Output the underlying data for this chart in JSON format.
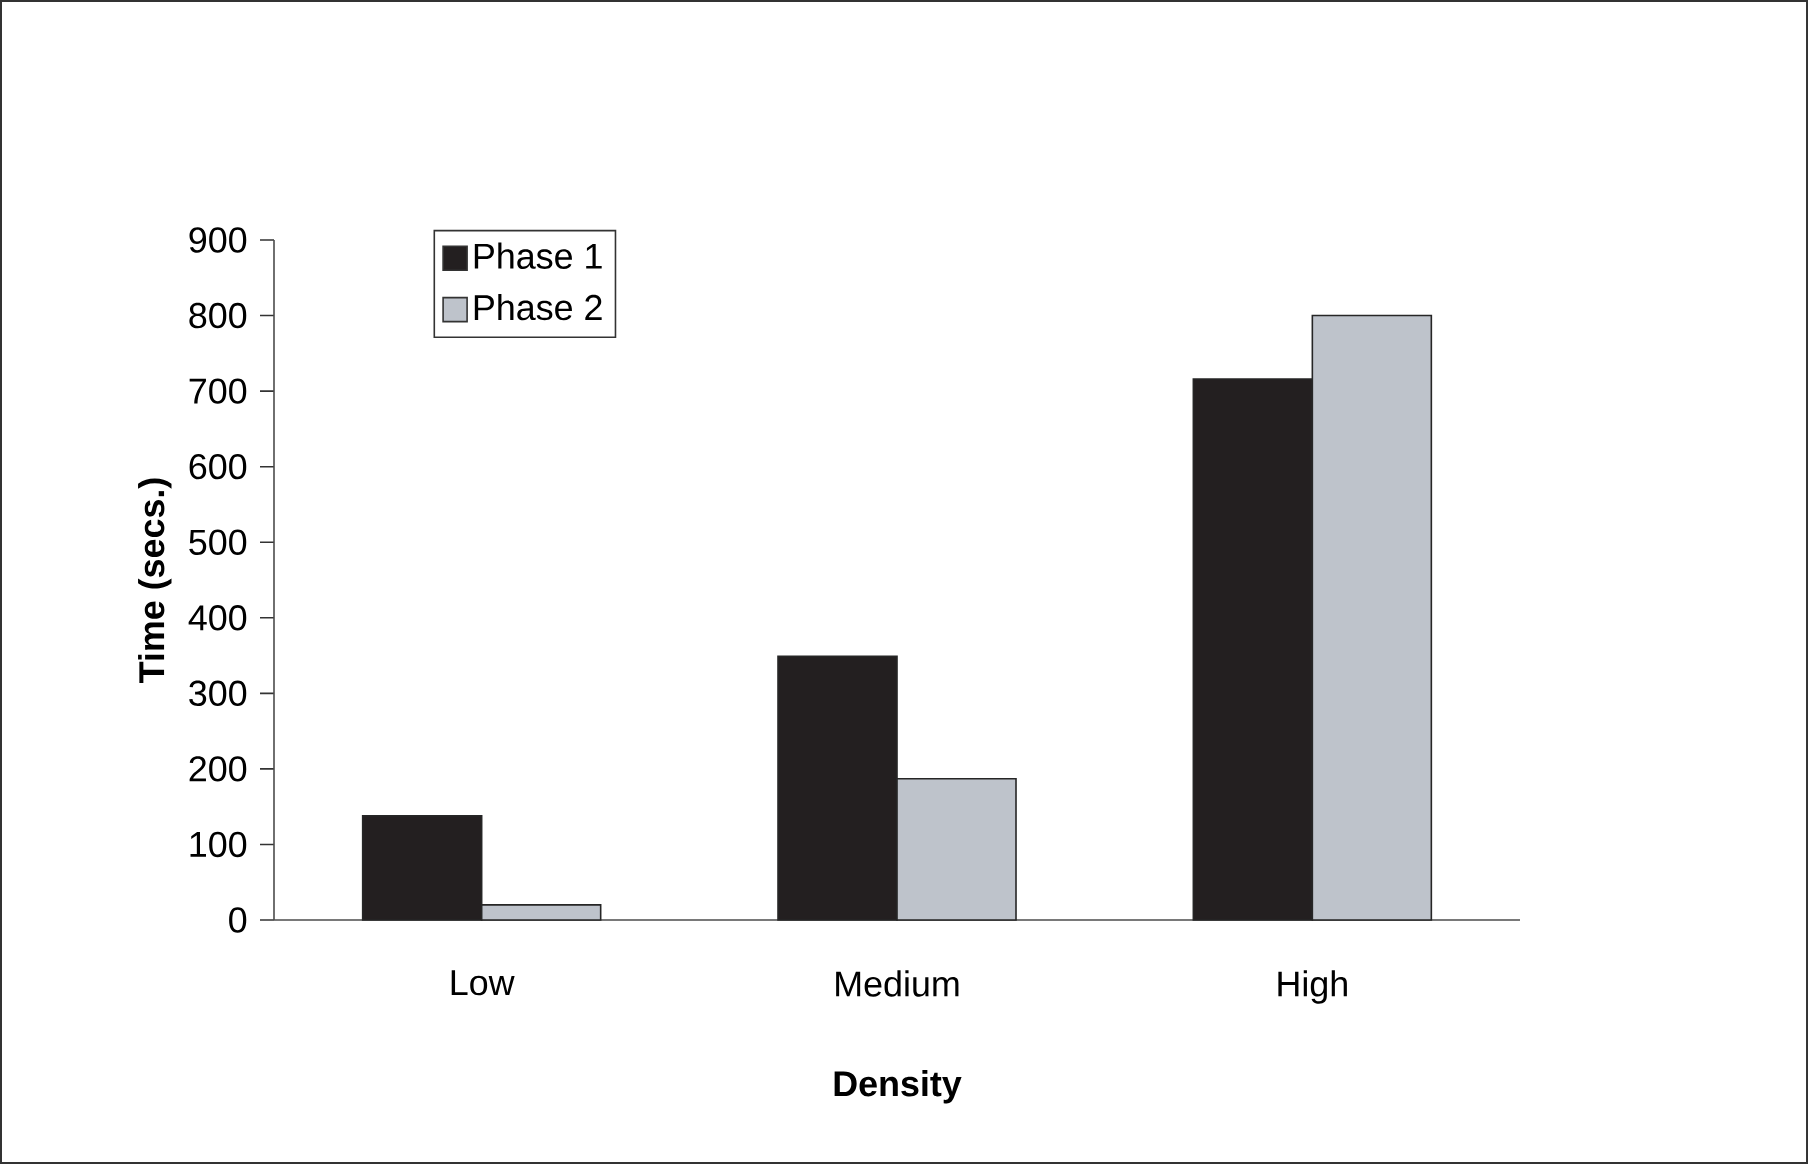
{
  "chart_data": {
    "type": "bar",
    "xlabel": "Density",
    "ylabel": "Time (secs.)",
    "categories": [
      "Low",
      "Medium",
      "High"
    ],
    "series": [
      {
        "name": "Phase 1",
        "color": "#231f20",
        "values": [
          138,
          349,
          716
        ]
      },
      {
        "name": "Phase 2",
        "color": "#bec3cb",
        "values": [
          20,
          187,
          800
        ]
      }
    ],
    "ylim": [
      0,
      900
    ],
    "yticks": [
      0,
      100,
      200,
      300,
      400,
      500,
      600,
      700,
      800,
      900
    ],
    "legend": "top left"
  }
}
